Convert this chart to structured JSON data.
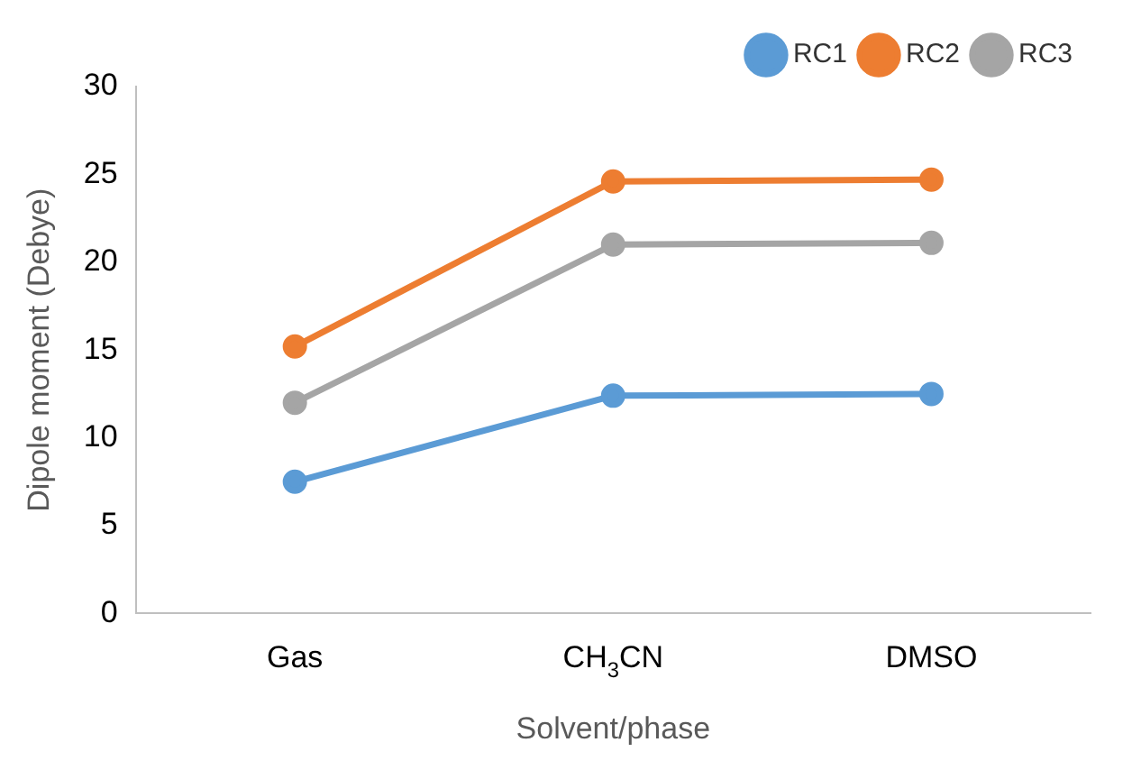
{
  "chart_data": {
    "type": "line",
    "xlabel": "Solvent/phase",
    "ylabel": "Dipole moment (Debye)",
    "categories": [
      "Gas",
      "CH$_{3}$CN",
      "DMSO"
    ],
    "series": [
      {
        "name": "RC1",
        "color": "#5b9bd5",
        "values": [
          7.5,
          12.4,
          12.5
        ]
      },
      {
        "name": "RC2",
        "color": "#ed7d31",
        "values": [
          15.2,
          24.6,
          24.7
        ]
      },
      {
        "name": "RC3",
        "color": "#a5a5a5",
        "values": [
          12.0,
          21.0,
          21.1
        ]
      }
    ],
    "ylim": [
      0,
      30
    ],
    "yticks": [
      0,
      5,
      10,
      15,
      20,
      25,
      30
    ],
    "grid": false,
    "legend": "top right",
    "marker": "circle",
    "line_style": "solid"
  }
}
